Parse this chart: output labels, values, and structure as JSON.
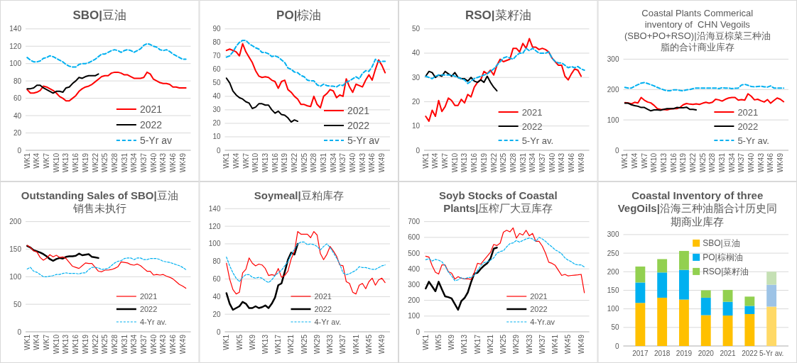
{
  "chart_data": [
    {
      "type": "line",
      "title": "SBO|豆油",
      "categories": [
        "WK1",
        null,
        null,
        "WK4",
        null,
        null,
        "WK7",
        null,
        null,
        "WK10",
        null,
        null,
        "WK13",
        null,
        null,
        "WK16",
        null,
        null,
        "WK19",
        null,
        null,
        "WK22",
        null,
        null,
        "WK25",
        null,
        null,
        "WK28",
        null,
        null,
        "WK31",
        null,
        null,
        "WK34",
        null,
        null,
        "WK37",
        null,
        null,
        "WK40",
        null,
        null,
        "WK43",
        null,
        null,
        "WK46",
        null,
        null,
        "WK49",
        null,
        null
      ],
      "series": [
        {
          "name": "2021",
          "color": "#ff0000",
          "values": [
            70,
            66,
            66,
            67,
            69,
            74,
            73,
            71,
            69,
            66,
            62,
            60,
            57,
            57,
            60,
            63,
            68,
            71,
            73,
            74,
            76,
            79,
            82,
            85,
            86,
            86,
            89,
            90,
            90,
            89,
            87,
            87,
            85,
            83,
            83,
            83,
            84,
            90,
            88,
            82,
            80,
            78,
            77,
            77,
            76,
            73,
            73,
            72,
            72,
            72,
            null
          ]
        },
        {
          "name": "2022",
          "color": "#000000",
          "values": [
            71,
            71,
            72,
            75,
            75,
            72,
            70,
            68,
            66,
            68,
            68,
            67,
            72,
            73,
            77,
            80,
            84,
            83,
            85,
            86,
            86,
            86,
            88,
            null,
            null,
            null,
            null,
            null,
            null,
            null,
            null,
            null,
            null,
            null,
            null,
            null,
            null,
            null,
            null,
            null,
            null,
            null,
            null,
            null,
            null,
            null,
            null,
            null,
            null,
            null,
            null
          ]
        },
        {
          "name": "5-Yr av",
          "color": "#00b0f0",
          "line_style": "dashed",
          "values": [
            107,
            104,
            102,
            102,
            103,
            106,
            107,
            109,
            108,
            106,
            104,
            102,
            99,
            97,
            96,
            96,
            99,
            100,
            100,
            101,
            103,
            105,
            108,
            111,
            111,
            113,
            115,
            116,
            115,
            113,
            115,
            116,
            115,
            113,
            115,
            117,
            121,
            123,
            122,
            120,
            119,
            116,
            115,
            116,
            114,
            111,
            109,
            107,
            105,
            105,
            null
          ]
        }
      ],
      "ylim": [
        0,
        140
      ],
      "yticks": [
        0,
        20,
        40,
        60,
        80,
        100,
        120,
        140
      ],
      "grid": "y",
      "legend": "bottom right"
    },
    {
      "type": "line",
      "title": "PO|棕油",
      "categories": [
        "WK1",
        null,
        null,
        "WK4",
        null,
        null,
        "WK7",
        null,
        null,
        "WK10",
        null,
        null,
        "WK13",
        null,
        null,
        "WK16",
        null,
        null,
        "WK19",
        null,
        null,
        "WK22",
        null,
        null,
        "WK25",
        null,
        null,
        "WK28",
        null,
        null,
        "WK31",
        null,
        null,
        "WK34",
        null,
        null,
        "WK37",
        null,
        null,
        "WK40",
        null,
        null,
        "WK43",
        null,
        null,
        "WK46",
        null,
        null,
        "WK49",
        null,
        null
      ],
      "series": [
        {
          "name": "2021",
          "color": "#ff0000",
          "values": [
            74,
            75,
            74,
            73,
            70,
            79,
            73,
            69,
            65,
            59,
            55,
            54,
            54.5,
            54,
            52,
            51,
            46,
            51,
            52,
            45,
            43,
            40,
            38,
            34,
            34,
            33,
            32.5,
            40,
            34,
            31.5,
            40,
            42,
            45,
            44,
            39,
            41,
            40,
            53,
            47,
            43,
            49,
            48,
            47,
            52,
            56,
            52,
            60,
            67,
            63,
            57.5,
            null
          ]
        },
        {
          "name": "2022",
          "color": "#000000",
          "values": [
            53.5,
            50,
            44,
            41,
            39,
            38,
            36,
            35,
            31,
            32,
            34.5,
            34.5,
            33.5,
            33.5,
            30,
            27.5,
            29,
            26.5,
            26,
            24,
            21,
            22.5,
            21.5,
            null,
            null,
            null,
            null,
            null,
            null,
            null,
            null,
            null,
            null,
            null,
            null,
            null,
            null,
            null,
            null,
            null,
            null,
            null,
            null,
            null,
            null,
            null,
            null,
            null,
            null,
            null,
            null
          ]
        },
        {
          "name": "5-Yr av",
          "color": "#00b0f0",
          "line_style": "dashed",
          "values": [
            69,
            70,
            73,
            77,
            80,
            81.5,
            81.5,
            79,
            77.5,
            76,
            75,
            72.5,
            72.5,
            71.5,
            69.5,
            70,
            69,
            67,
            65,
            61,
            60,
            58,
            57.5,
            55.5,
            54.5,
            52,
            51.5,
            51.5,
            48.5,
            47.5,
            49,
            48,
            47.5,
            47.5,
            47,
            48.5,
            48,
            50.5,
            51.5,
            53,
            54.5,
            53,
            57,
            59,
            58.5,
            62,
            67.5,
            65.5,
            66,
            66,
            null
          ]
        }
      ],
      "ylim": [
        0,
        90
      ],
      "yticks": [
        0,
        10,
        20,
        30,
        40,
        50,
        60,
        70,
        80,
        90
      ],
      "grid": "y",
      "legend": "bottom right"
    },
    {
      "type": "line",
      "title": "RSO|菜籽油",
      "categories": [
        "WK1",
        null,
        null,
        "WK4",
        null,
        null,
        "WK7",
        null,
        null,
        "WK10",
        null,
        null,
        "WK13",
        null,
        null,
        "WK16",
        null,
        null,
        "WK19",
        null,
        null,
        "WK22",
        null,
        null,
        "WK25",
        null,
        null,
        "WK28",
        null,
        null,
        "WK31",
        null,
        null,
        "WK34",
        null,
        null,
        "WK37",
        null,
        null,
        "WK40",
        null,
        null,
        "WK43",
        null,
        null,
        "WK46",
        null,
        null,
        "WK49",
        null,
        null
      ],
      "series": [
        {
          "name": "2021",
          "color": "#ff0000",
          "values": [
            14,
            12,
            16.5,
            14,
            20.5,
            16,
            18,
            21.5,
            20.5,
            18.5,
            18.5,
            21,
            19.5,
            23,
            22,
            26,
            28,
            29,
            32.5,
            31.5,
            33,
            31,
            35,
            37.5,
            36.5,
            37,
            37.5,
            42,
            42,
            40.5,
            44,
            42,
            46,
            42.5,
            42.5,
            41.5,
            42,
            41.5,
            40.5,
            38,
            36.5,
            35,
            35,
            30.5,
            29,
            31.5,
            33.5,
            33,
            30.5,
            null,
            null
          ]
        },
        {
          "name": "2022",
          "color": "#000000",
          "values": [
            30.5,
            32.5,
            32,
            30,
            31,
            30.5,
            32.5,
            31.5,
            30.5,
            32,
            30,
            29.5,
            29.5,
            28.5,
            30,
            28.5,
            28,
            29,
            28,
            30.5,
            28,
            26,
            24.5,
            null,
            null,
            null,
            null,
            null,
            null,
            null,
            null,
            null,
            null,
            null,
            null,
            null,
            null,
            null,
            null,
            null,
            null,
            null,
            null,
            null,
            null,
            null,
            null,
            null,
            null,
            null,
            null
          ]
        },
        {
          "name": "5-Yr av.",
          "color": "#00b0f0",
          "line_style": "dashed",
          "values": [
            30.5,
            30,
            29.5,
            30.5,
            31,
            31,
            31,
            31,
            31,
            30.5,
            30,
            29.5,
            29,
            27.5,
            28.5,
            29.5,
            30,
            30.5,
            31,
            31.5,
            32.5,
            33.5,
            35,
            36.5,
            38,
            38.5,
            38,
            37.5,
            39,
            40,
            40,
            42,
            41,
            42,
            41,
            40,
            40,
            40,
            40.5,
            38,
            36.5,
            36,
            36,
            35,
            34,
            34.5,
            34,
            34.5,
            33.5,
            33,
            null
          ]
        }
      ],
      "ylim": [
        0,
        50
      ],
      "yticks": [
        0,
        10,
        20,
        30,
        40,
        50
      ],
      "grid": "y",
      "legend": "bottom right"
    },
    {
      "type": "line",
      "title": "Coastal Plants Commerical inventory of  CHN Vegoils (SBO+PO+RSO)|沿海豆棕菜三种油脂的合计商业库存",
      "categories": [
        "WK1",
        null,
        null,
        "WK4",
        null,
        null,
        "WK7",
        null,
        null,
        "WK10",
        null,
        null,
        "WK13",
        null,
        null,
        "WK16",
        null,
        null,
        "WK19",
        null,
        null,
        "WK22",
        null,
        null,
        "WK25",
        null,
        null,
        "WK28",
        null,
        null,
        "WK31",
        null,
        null,
        "WK34",
        null,
        null,
        "WK37",
        null,
        null,
        "WK40",
        null,
        null,
        "WK43",
        null,
        null,
        "WK46",
        null,
        null,
        "WK49",
        null,
        null
      ],
      "series": [
        {
          "name": "2021",
          "color": "#ff0000",
          "values": [
            157,
            156,
            153,
            158,
            156,
            174,
            165,
            159,
            156,
            148,
            137,
            135,
            134,
            133,
            136,
            137,
            137,
            141,
            150,
            154,
            152,
            151,
            153,
            151,
            155,
            158,
            155,
            158,
            168,
            166,
            162,
            168,
            172,
            174,
            174,
            165,
            167,
            165,
            186,
            178,
            166,
            168,
            163,
            159,
            167,
            155,
            164,
            172,
            168,
            160,
            null
          ]
        },
        {
          "name": "2022",
          "color": "#000000",
          "values": [
            155,
            155,
            150,
            147,
            145,
            141,
            141,
            135,
            130,
            133,
            133,
            132,
            135,
            137,
            137,
            137,
            141,
            140,
            140,
            142,
            135,
            135,
            133,
            null,
            null,
            null,
            null,
            null,
            null,
            null,
            null,
            null,
            null,
            null,
            null,
            null,
            null,
            null,
            null,
            null,
            null,
            null,
            null,
            null,
            null,
            null,
            null,
            null,
            null,
            null,
            null
          ]
        },
        {
          "name": "5-Yr av.",
          "color": "#00b0f0",
          "line_style": "dashed",
          "values": [
            207,
            205,
            205,
            211,
            216,
            221,
            223,
            220,
            216,
            212,
            207,
            203,
            199,
            196,
            196,
            199,
            199,
            197,
            196,
            199,
            200,
            203,
            205,
            205,
            205,
            205,
            205,
            205,
            205,
            203,
            206,
            205,
            205,
            203,
            204,
            205,
            215,
            217,
            214,
            210,
            209,
            210,
            211,
            209,
            208,
            212,
            205,
            205,
            205,
            205,
            null
          ]
        }
      ],
      "ylim": [
        0,
        300
      ],
      "yticks": [
        0,
        100,
        200,
        300
      ],
      "grid": "y",
      "legend": "bottom right"
    },
    {
      "type": "line",
      "title": "Outstanding Sales of SBO|豆油销售未执行",
      "categories": [
        "WK1",
        null,
        null,
        "WK4",
        null,
        null,
        "WK7",
        null,
        null,
        "WK10",
        null,
        null,
        "WK13",
        null,
        null,
        "WK16",
        null,
        null,
        "WK19",
        null,
        null,
        "WK22",
        null,
        null,
        "WK25",
        null,
        null,
        "WK28",
        null,
        null,
        "WK31",
        null,
        null,
        "WK34",
        null,
        null,
        "WK37",
        null,
        null,
        "WK40",
        null,
        null,
        "WK43",
        null,
        null,
        "WK46",
        null,
        null,
        "WK49",
        null,
        null
      ],
      "series": [
        {
          "name": "2021",
          "color": "#ff0000",
          "values": [
            157,
            153,
            147,
            145,
            135,
            130,
            134,
            140,
            136,
            139,
            135,
            136,
            133,
            126,
            119,
            117,
            115,
            120,
            125,
            124,
            124,
            117,
            110,
            109,
            112,
            112,
            113,
            115,
            118,
            127,
            126,
            125,
            122,
            121,
            123,
            120,
            115,
            110,
            110,
            103,
            104,
            103,
            104,
            101,
            99,
            96,
            91,
            86,
            83,
            79,
            null
          ]
        },
        {
          "name": "2022",
          "color": "#000000",
          "values": [
            156,
            153,
            148,
            146,
            144,
            141,
            137,
            132,
            129,
            132,
            134,
            133,
            136,
            137,
            137,
            138,
            142,
            139,
            140,
            141,
            136,
            135,
            134,
            null,
            null,
            null,
            null,
            null,
            null,
            null,
            null,
            null,
            null,
            null,
            null,
            null,
            null,
            null,
            null,
            null,
            null,
            null,
            null,
            null,
            null,
            null,
            null,
            null,
            null,
            null,
            null
          ]
        },
        {
          "name": "4-Yr av.",
          "color": "#00b0f0",
          "line_style": "dashed",
          "values": [
            114,
            117,
            110,
            108,
            104,
            100,
            100,
            101,
            102,
            104,
            104,
            106,
            107,
            106,
            106,
            106,
            105,
            107,
            107,
            113,
            117,
            117,
            116,
            113,
            114,
            115,
            120,
            125,
            128,
            129,
            133,
            134,
            134,
            131,
            134,
            134,
            131,
            131,
            133,
            133,
            133,
            131,
            128,
            127,
            126,
            124,
            122,
            120,
            117,
            113,
            null
          ]
        }
      ],
      "ylim": [
        0,
        200
      ],
      "yticks": [
        0,
        50,
        100,
        150,
        200
      ],
      "grid": "y",
      "legend": "bottom right"
    },
    {
      "type": "line",
      "title": "Soymeal|豆粕库存",
      "categories": [
        "WK1",
        null,
        null,
        null,
        "WK5",
        null,
        null,
        null,
        "WK9",
        null,
        null,
        null,
        "WK13",
        null,
        null,
        null,
        "WK17",
        null,
        null,
        null,
        "WK21",
        null,
        null,
        null,
        "WK25",
        null,
        null,
        null,
        "WK29",
        null,
        null,
        null,
        "WK33",
        null,
        null,
        null,
        "WK37",
        null,
        null,
        null,
        "WK41",
        null,
        null,
        null,
        "WK45",
        null,
        null,
        null,
        "WK49",
        null,
        null
      ],
      "series": [
        {
          "name": "2021",
          "color": "#ff0000",
          "values": [
            78,
            60,
            48,
            43,
            45,
            67,
            71,
            84,
            78,
            75,
            77,
            76,
            72,
            64,
            65,
            64,
            72,
            62,
            64,
            69,
            83,
            91,
            114,
            111,
            111,
            111,
            107,
            114,
            110,
            89,
            82,
            88,
            97,
            92,
            86,
            76,
            75,
            57,
            55,
            45,
            43,
            53,
            55,
            49,
            57,
            61,
            53,
            59,
            61,
            56,
            null
          ]
        },
        {
          "name": "2022",
          "color": "#000000",
          "values": [
            44,
            32,
            25,
            27,
            29,
            34,
            32,
            27,
            27,
            29,
            27,
            28,
            30,
            27,
            32,
            39,
            53,
            55,
            68,
            82,
            90,
            88,
            100,
            null,
            null,
            null,
            null,
            null,
            null,
            null,
            null,
            null,
            null,
            null,
            null,
            null,
            null,
            null,
            null,
            null,
            null,
            null,
            null,
            null,
            null,
            null,
            null,
            null,
            null,
            null,
            null
          ]
        },
        {
          "name": "4-Yr av.",
          "color": "#00b0f0",
          "line_style": "dashed",
          "values": [
            85,
            75,
            67,
            61,
            57,
            62,
            65,
            65,
            62,
            61,
            62,
            61,
            58,
            56,
            59,
            64,
            67,
            70,
            75,
            80,
            88,
            94,
            100,
            102,
            102,
            99,
            100,
            99,
            97,
            93,
            97,
            100,
            96,
            90,
            84,
            77,
            67,
            65,
            66,
            68,
            70,
            74,
            73,
            73,
            72,
            71,
            71,
            73,
            75,
            76,
            null
          ]
        }
      ],
      "ylim": [
        0,
        140
      ],
      "yticks": [
        0,
        20,
        40,
        60,
        80,
        100,
        120,
        140
      ],
      "grid": "y",
      "legend": "bottom right"
    },
    {
      "type": "line",
      "title": "Soyb Stocks of Coastal Plants|压榨厂大豆库存",
      "categories": [
        "WK1",
        null,
        null,
        null,
        "WK5",
        null,
        null,
        null,
        "WK9",
        null,
        null,
        null,
        "WK13",
        null,
        null,
        null,
        "WK17",
        null,
        null,
        null,
        "WK21",
        null,
        null,
        null,
        "WK25",
        null,
        null,
        null,
        "WK29",
        null,
        null,
        null,
        "WK33",
        null,
        null,
        null,
        "WK37",
        null,
        null,
        null,
        "WK41",
        null,
        null,
        null,
        "WK45",
        null,
        null,
        null,
        "WK49",
        null,
        null
      ],
      "series": [
        {
          "name": "2021",
          "color": "#ff0000",
          "values": [
            480,
            475,
            420,
            378,
            367,
            425,
            425,
            382,
            373,
            335,
            350,
            340,
            336,
            337,
            333,
            375,
            435,
            430,
            455,
            480,
            505,
            555,
            548,
            563,
            633,
            645,
            635,
            660,
            595,
            625,
            615,
            645,
            610,
            625,
            575,
            575,
            545,
            500,
            442,
            435,
            422,
            390,
            358,
            365,
            355,
            358,
            360,
            362,
            365,
            248,
            null
          ]
        },
        {
          "name": "2022",
          "color": "#000000",
          "values": [
            275,
            318,
            288,
            258,
            318,
            270,
            225,
            220,
            212,
            176,
            140,
            195,
            215,
            250,
            315,
            370,
            375,
            400,
            420,
            436,
            465,
            528,
            535,
            null,
            null,
            null,
            null,
            null,
            null,
            null,
            null,
            null,
            null,
            null,
            null,
            null,
            null,
            null,
            null,
            null,
            null,
            null,
            null,
            null,
            null,
            null,
            null,
            null,
            null,
            null,
            null
          ]
        },
        {
          "name": "4-Yr.av",
          "color": "#00b0f0",
          "line_style": "dashed",
          "values": [
            458,
            465,
            450,
            460,
            455,
            445,
            420,
            380,
            355,
            325,
            330,
            345,
            335,
            345,
            345,
            360,
            390,
            420,
            440,
            445,
            455,
            470,
            500,
            510,
            515,
            540,
            560,
            565,
            580,
            570,
            580,
            590,
            595,
            590,
            575,
            600,
            590,
            575,
            555,
            540,
            520,
            510,
            495,
            470,
            455,
            445,
            430,
            425,
            425,
            412,
            null
          ]
        }
      ],
      "ylim": [
        0,
        700
      ],
      "yticks": [
        0,
        100,
        200,
        300,
        400,
        500,
        600,
        700
      ],
      "grid": "y",
      "legend": "bottom right"
    },
    {
      "type": "bar",
      "stacked": true,
      "title": "Coastal Inventory of three VegOils|沿海三种油脂合计历史同期商业库存",
      "categories": [
        "2017",
        "2018",
        "2019",
        "2020",
        "2021",
        "2022",
        "5-Yr av."
      ],
      "series": [
        {
          "name": "SBO|豆油",
          "color": "#ffc000",
          "colors": [
            "#ffc000",
            "#ffc000",
            "#ffc000",
            "#ffc000",
            "#ffc000",
            "#ffc000",
            "#ffd966"
          ],
          "values": [
            116,
            130,
            125,
            83,
            82,
            86,
            106
          ]
        },
        {
          "name": "PO|棕榈油",
          "color": "#00b0f0",
          "colors": [
            "#00b0f0",
            "#00b0f0",
            "#00b0f0",
            "#00b0f0",
            "#00b0f0",
            "#00b0f0",
            "#9dc3e6"
          ],
          "values": [
            55,
            68,
            80,
            47,
            37,
            22,
            59
          ]
        },
        {
          "name": "RSO|菜籽油",
          "color": "#92d050",
          "colors": [
            "#92d050",
            "#92d050",
            "#92d050",
            "#92d050",
            "#92d050",
            "#92d050",
            "#c5e0b4"
          ],
          "values": [
            43,
            36,
            51,
            20,
            32,
            25,
            35
          ]
        }
      ],
      "ylim": [
        0,
        300
      ],
      "yticks": [
        0,
        50,
        100,
        150,
        200,
        250,
        300
      ],
      "grid": "y",
      "legend": "top right"
    }
  ]
}
